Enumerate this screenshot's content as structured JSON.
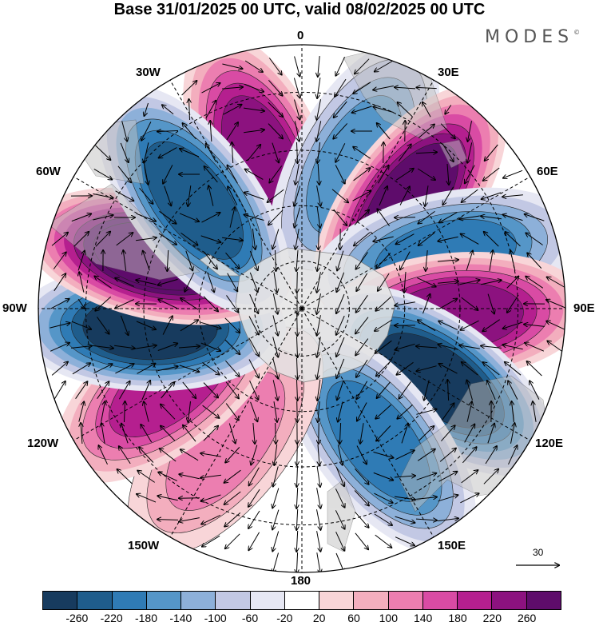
{
  "title": "Base 31/01/2025 00 UTC, valid 08/02/2025 00 UTC",
  "logo": "MODES",
  "logo_mark": "©",
  "longitude_labels": {
    "lon_0": "0",
    "lon_30e": "30E",
    "lon_60e": "60E",
    "lon_90e": "90E",
    "lon_120e": "120E",
    "lon_150e": "150E",
    "lon_180": "180",
    "lon_150w": "150W",
    "lon_120w": "120W",
    "lon_90w": "90W",
    "lon_60w": "60W",
    "lon_30w": "30W"
  },
  "reference_vector": "30",
  "colorbar": {
    "colors": [
      "#173b5e",
      "#1f5d8c",
      "#2f7bb5",
      "#5596c8",
      "#8db0d9",
      "#c2c8e4",
      "#e6e7f3",
      "#ffffff",
      "#f8d5d8",
      "#f3aebe",
      "#ec7eb0",
      "#d94ba4",
      "#b51f8f",
      "#8c127f",
      "#5e0c6b"
    ],
    "tick_labels": [
      "-260",
      "-220",
      "-180",
      "-140",
      "-100",
      "-60",
      "-20",
      "20",
      "60",
      "100",
      "140",
      "180",
      "220",
      "260"
    ]
  },
  "chart_data": {
    "type": "heatmap",
    "projection": "south polar stereographic",
    "field": "anomaly",
    "color_levels": [
      -260,
      -220,
      -180,
      -140,
      -100,
      -60,
      -20,
      20,
      60,
      100,
      140,
      180,
      220,
      260
    ],
    "anomaly_centers": [
      {
        "lon": -15,
        "value": 240
      },
      {
        "lon": 20,
        "value": -160
      },
      {
        "lon": 45,
        "value": 280
      },
      {
        "lon": 70,
        "value": -200
      },
      {
        "lon": 93,
        "value": 240
      },
      {
        "lon": 118,
        "value": -280
      },
      {
        "lon": 150,
        "value": -180
      },
      {
        "lon": -150,
        "value": 100
      },
      {
        "lon": -120,
        "value": 200
      },
      {
        "lon": -97,
        "value": -280
      },
      {
        "lon": -70,
        "value": 300
      },
      {
        "lon": -45,
        "value": -220
      }
    ],
    "grid": true
  }
}
